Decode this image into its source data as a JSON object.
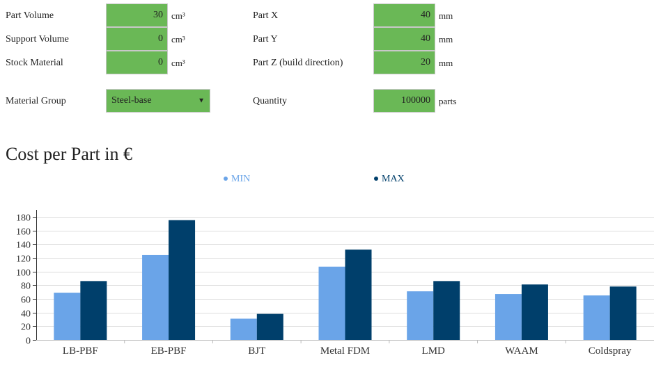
{
  "form": {
    "part_volume": {
      "label": "Part Volume",
      "value": "30",
      "unit": "cm³"
    },
    "support_volume": {
      "label": "Support Volume",
      "value": "0",
      "unit": "cm³"
    },
    "stock_material": {
      "label": "Stock Material",
      "value": "0",
      "unit": "cm³"
    },
    "part_x": {
      "label": "Part X",
      "value": "40",
      "unit": "mm"
    },
    "part_y": {
      "label": "Part Y",
      "value": "40",
      "unit": "mm"
    },
    "part_z": {
      "label": "Part Z (build direction)",
      "value": "20",
      "unit": "mm"
    },
    "material_group": {
      "label": "Material Group",
      "value": "Steel-base",
      "arrow": "▼"
    },
    "quantity": {
      "label": "Quantity",
      "value": "100000",
      "unit": "parts"
    }
  },
  "chart_title": "Cost per Part in €",
  "colors": {
    "field_bg": "#6ab856",
    "min": "#6aa4e8",
    "max": "#003f6b"
  },
  "chart_data": {
    "type": "bar",
    "title": "Cost per Part in €",
    "xlabel": "",
    "ylabel": "",
    "ylim": [
      0,
      190
    ],
    "yticks": [
      0,
      20,
      40,
      60,
      80,
      100,
      120,
      140,
      160,
      180
    ],
    "grid": true,
    "legend_position": "top",
    "categories": [
      "LB-PBF",
      "EB-PBF",
      "BJT",
      "Metal FDM",
      "LMD",
      "WAAM",
      "Coldspray"
    ],
    "series": [
      {
        "name": "MIN",
        "color": "#6aa4e8",
        "values": [
          69,
          124,
          31,
          107,
          71,
          67,
          65
        ]
      },
      {
        "name": "MAX",
        "color": "#003f6b",
        "values": [
          86,
          175,
          38,
          132,
          86,
          81,
          78
        ]
      }
    ]
  }
}
